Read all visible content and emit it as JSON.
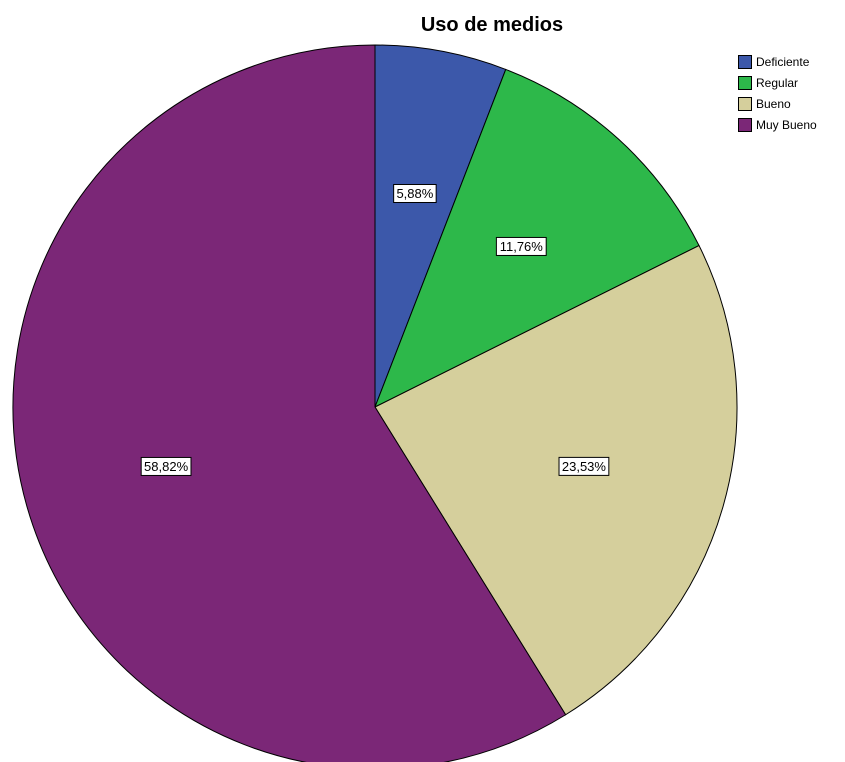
{
  "chart_data": {
    "type": "pie",
    "title": "Uso de medios",
    "categories": [
      "Deficiente",
      "Regular",
      "Bueno",
      "Muy Bueno"
    ],
    "values": [
      5.88,
      11.76,
      23.53,
      58.82
    ],
    "data_labels": [
      "5,88%",
      "11,76%",
      "23,53%",
      "58,82%"
    ],
    "colors": [
      "#3c58aa",
      "#2db84a",
      "#d5cf9c",
      "#7b2777"
    ],
    "start": "12 o'clock",
    "direction": "clockwise",
    "legend_position": "top-right"
  }
}
